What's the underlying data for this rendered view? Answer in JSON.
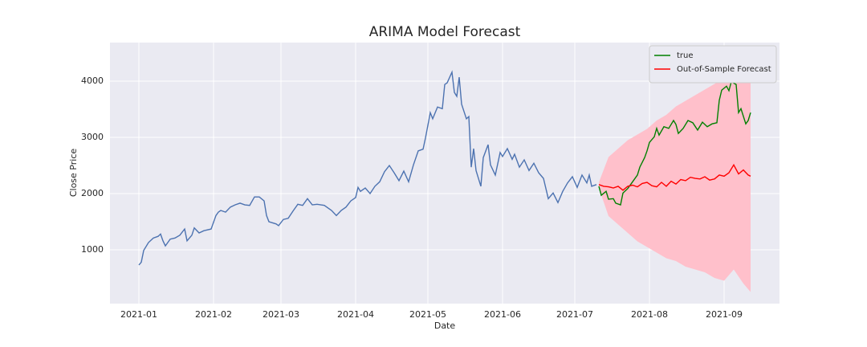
{
  "chart_data": {
    "type": "line",
    "title": "ARIMA Model Forecast",
    "xlabel": "Date",
    "ylabel": "Close Price",
    "xlim": [
      -12,
      266
    ],
    "ylim": [
      43,
      4686
    ],
    "xticks": [
      {
        "value": 0,
        "label": "2021-01"
      },
      {
        "value": 31,
        "label": "2021-02"
      },
      {
        "value": 59,
        "label": "2021-03"
      },
      {
        "value": 90,
        "label": "2021-04"
      },
      {
        "value": 120,
        "label": "2021-05"
      },
      {
        "value": 151,
        "label": "2021-06"
      },
      {
        "value": 181,
        "label": "2021-07"
      },
      {
        "value": 212,
        "label": "2021-08"
      },
      {
        "value": 243,
        "label": "2021-09"
      }
    ],
    "yticks": [
      1000,
      2000,
      3000,
      4000
    ],
    "grid": true,
    "legend": "upper right",
    "interval": {
      "color": "#ffc0cb",
      "x": [
        191,
        195,
        199,
        203,
        207,
        211,
        215,
        219,
        223,
        227,
        231,
        235,
        239,
        243,
        247,
        251,
        254
      ],
      "upper": [
        2200,
        2650,
        2800,
        2950,
        3050,
        3150,
        3300,
        3400,
        3550,
        3650,
        3750,
        3850,
        3950,
        4050,
        4250,
        4150,
        4300
      ],
      "lower": [
        2100,
        1600,
        1450,
        1300,
        1150,
        1050,
        950,
        850,
        800,
        700,
        650,
        600,
        500,
        450,
        650,
        400,
        250
      ]
    },
    "series": [
      {
        "color": "#4c72b0",
        "x": [
          0,
          1,
          2,
          4,
          6,
          8,
          9,
          10,
          11,
          13,
          15,
          17,
          19,
          20,
          22,
          23,
          25,
          27,
          30,
          32,
          33,
          34,
          36,
          38,
          40,
          42,
          44,
          46,
          48,
          50,
          52,
          53,
          54,
          57,
          58,
          60,
          62,
          64,
          66,
          68,
          70,
          72,
          74,
          77,
          80,
          82,
          84,
          86,
          88,
          90,
          91,
          92,
          94,
          96,
          98,
          100,
          102,
          104,
          106,
          108,
          110,
          112,
          114,
          116,
          118,
          119,
          121,
          122,
          124,
          126,
          127,
          128,
          130,
          131,
          132,
          133,
          134,
          136,
          137,
          138,
          139,
          140,
          142,
          143,
          145,
          146,
          148,
          150,
          151,
          153,
          155,
          156,
          158,
          160,
          162,
          164,
          166,
          168,
          170,
          172,
          174,
          176,
          178,
          180,
          182,
          184,
          186,
          187,
          188,
          190
        ],
        "values": [
          730,
          780,
          990,
          1130,
          1210,
          1240,
          1280,
          1160,
          1070,
          1190,
          1210,
          1260,
          1370,
          1160,
          1260,
          1390,
          1300,
          1340,
          1370,
          1610,
          1670,
          1700,
          1670,
          1760,
          1800,
          1830,
          1800,
          1790,
          1940,
          1940,
          1870,
          1610,
          1500,
          1460,
          1430,
          1540,
          1560,
          1690,
          1810,
          1790,
          1910,
          1800,
          1810,
          1790,
          1700,
          1610,
          1700,
          1760,
          1870,
          1930,
          2110,
          2040,
          2100,
          2000,
          2130,
          2210,
          2390,
          2500,
          2370,
          2230,
          2400,
          2210,
          2510,
          2760,
          2790,
          2990,
          3440,
          3330,
          3540,
          3510,
          3940,
          3970,
          4160,
          3800,
          3730,
          4070,
          3590,
          3330,
          3370,
          2470,
          2800,
          2410,
          2130,
          2640,
          2870,
          2510,
          2330,
          2730,
          2660,
          2800,
          2610,
          2700,
          2470,
          2600,
          2410,
          2540,
          2370,
          2270,
          1910,
          2010,
          1840,
          2040,
          2190,
          2300,
          2110,
          2330,
          2190,
          2330,
          2130,
          2160
        ]
      },
      {
        "name": "true",
        "color": "#008000",
        "x": [
          191,
          192,
          194,
          195,
          197,
          198,
          200,
          201,
          203,
          205,
          207,
          208,
          210,
          211,
          212,
          214,
          215,
          216,
          218,
          220,
          222,
          223,
          224,
          226,
          228,
          230,
          232,
          234,
          236,
          238,
          240,
          241,
          242,
          244,
          245,
          246,
          248,
          249,
          250,
          252,
          253,
          254
        ],
        "values": [
          2130,
          1970,
          2040,
          1900,
          1910,
          1830,
          1800,
          2010,
          2090,
          2210,
          2330,
          2470,
          2640,
          2760,
          2910,
          3010,
          3160,
          3040,
          3190,
          3160,
          3300,
          3230,
          3070,
          3160,
          3300,
          3260,
          3130,
          3270,
          3190,
          3240,
          3260,
          3660,
          3840,
          3910,
          3830,
          3990,
          3940,
          3440,
          3510,
          3240,
          3300,
          3440
        ]
      },
      {
        "name": "Out-of-Sample Forecast",
        "color": "#ff0000",
        "x": [
          191,
          193,
          195,
          197,
          199,
          201,
          203,
          205,
          207,
          209,
          211,
          213,
          215,
          217,
          219,
          221,
          223,
          225,
          227,
          229,
          231,
          233,
          235,
          237,
          239,
          241,
          243,
          245,
          247,
          249,
          251,
          253,
          254
        ],
        "values": [
          2160,
          2130,
          2120,
          2100,
          2130,
          2060,
          2130,
          2150,
          2120,
          2180,
          2200,
          2140,
          2120,
          2200,
          2130,
          2220,
          2170,
          2250,
          2230,
          2290,
          2270,
          2260,
          2300,
          2240,
          2260,
          2330,
          2310,
          2370,
          2510,
          2350,
          2420,
          2330,
          2310
        ]
      }
    ]
  }
}
